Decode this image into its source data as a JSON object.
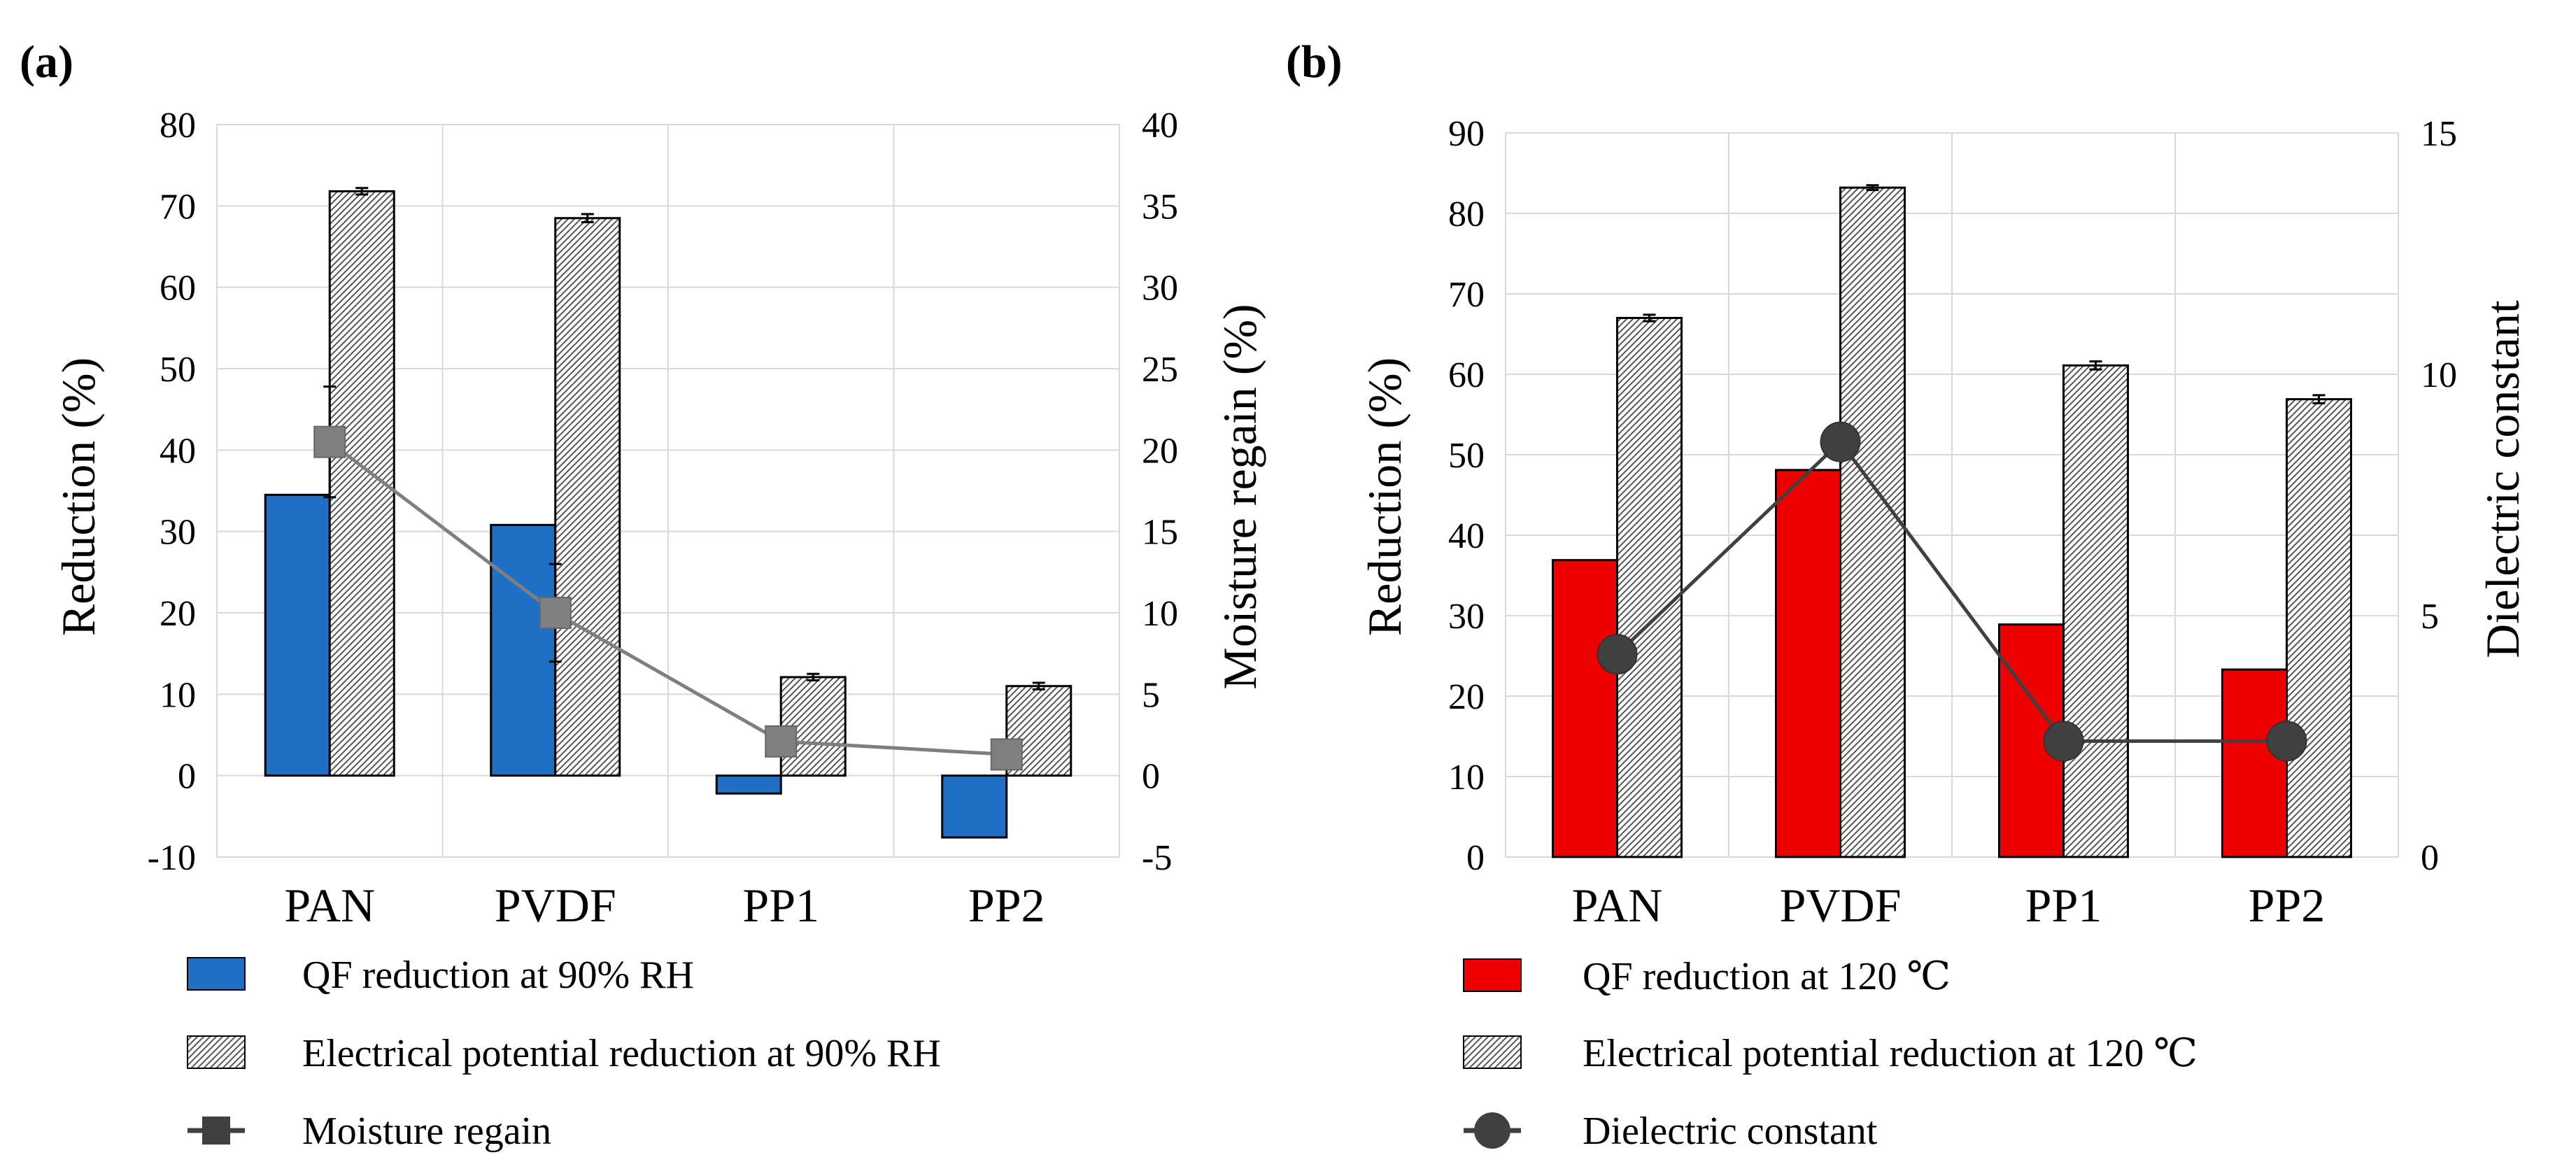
{
  "chart_data": [
    {
      "panel_label": "(a)",
      "type": "bar",
      "categories": [
        "PAN",
        "PVDF",
        "PP1",
        "PP2"
      ],
      "ylabel": "Reduction (%)",
      "ylim": [
        -10,
        80
      ],
      "yticks": [
        -10,
        0,
        10,
        20,
        30,
        40,
        50,
        60,
        70,
        80
      ],
      "y2label": "Moisture regain (%)",
      "y2lim": [
        -5,
        40
      ],
      "y2ticks": [
        -5,
        0,
        5,
        10,
        15,
        20,
        25,
        30,
        35,
        40
      ],
      "grid": true,
      "series": [
        {
          "name": "QF reduction at 90% RH",
          "kind": "bar",
          "axis": "left",
          "color": "#1f6fc7",
          "values": [
            34.5,
            30.8,
            -2.2,
            -7.6
          ]
        },
        {
          "name": "Electrical potential reduction at 90% RH",
          "kind": "bar",
          "axis": "left",
          "pattern": "hatched",
          "values": [
            71.8,
            68.5,
            12.1,
            11.0
          ],
          "errors": [
            0.4,
            0.5,
            0.4,
            0.4
          ]
        },
        {
          "name": "Moisture regain",
          "kind": "line",
          "axis": "right",
          "marker": "square",
          "color": "#7f7f7f",
          "values": [
            20.5,
            10.0,
            2.1,
            1.3
          ],
          "errors": [
            3.4,
            3.0,
            0,
            0
          ]
        }
      ],
      "legend": [
        {
          "label": "QF reduction at 90% RH",
          "icon": "blue-box"
        },
        {
          "label": "Electrical potential reduction at 90% RH",
          "icon": "hatched-box"
        },
        {
          "label": "Moisture regain",
          "icon": "square-marker-line"
        }
      ]
    },
    {
      "panel_label": "(b)",
      "type": "bar",
      "categories": [
        "PAN",
        "PVDF",
        "PP1",
        "PP2"
      ],
      "ylabel": "Reduction (%)",
      "ylim": [
        0,
        90
      ],
      "yticks": [
        0,
        10,
        20,
        30,
        40,
        50,
        60,
        70,
        80,
        90
      ],
      "y2label": "Dielectric constant",
      "y2lim": [
        0,
        15
      ],
      "y2ticks": [
        0,
        5,
        10,
        15
      ],
      "grid": true,
      "series": [
        {
          "name": "QF reduction at 120 ℃",
          "kind": "bar",
          "axis": "left",
          "color": "#ee0000",
          "values": [
            36.9,
            48.1,
            28.9,
            23.3
          ]
        },
        {
          "name": "Electrical potential reduction at 120 ℃",
          "kind": "bar",
          "axis": "left",
          "pattern": "hatched",
          "values": [
            67.0,
            83.2,
            61.1,
            56.9
          ],
          "errors": [
            0.4,
            0.3,
            0.5,
            0.5
          ]
        },
        {
          "name": "Dielectric constant",
          "kind": "line",
          "axis": "right",
          "marker": "circle",
          "color": "#404040",
          "values": [
            4.2,
            8.6,
            2.4,
            2.4
          ]
        }
      ],
      "legend": [
        {
          "label": "QF reduction at 120 ℃",
          "icon": "red-box"
        },
        {
          "label": "Electrical potential reduction at 120 ℃",
          "icon": "hatched-box"
        },
        {
          "label": "Dielectric constant",
          "icon": "circle-marker-line"
        }
      ]
    }
  ]
}
